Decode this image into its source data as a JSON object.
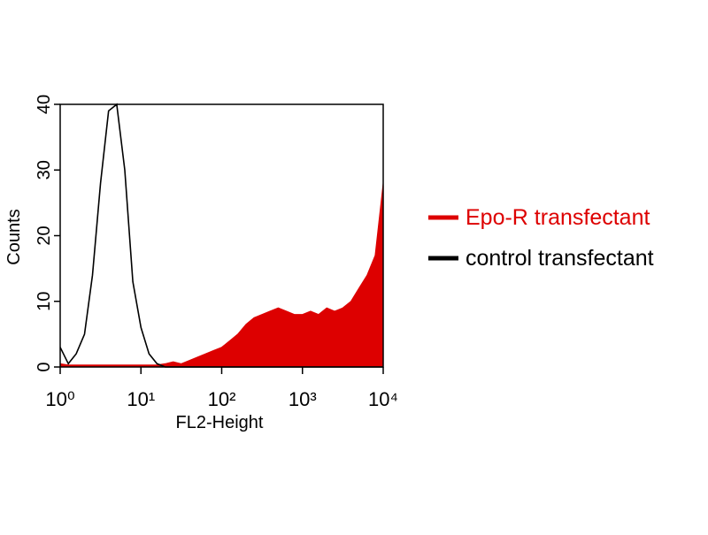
{
  "chart_data": {
    "type": "histogram-overlay",
    "x_label": "FL2-Height",
    "y_label": "Counts",
    "xscale": "log",
    "xlim": [
      1,
      10000
    ],
    "ylim": [
      0,
      40
    ],
    "xticks": [
      {
        "value": 1,
        "label": "10⁰"
      },
      {
        "value": 10,
        "label": "10¹"
      },
      {
        "value": 100,
        "label": "10²"
      },
      {
        "value": 1000,
        "label": "10³"
      },
      {
        "value": 10000,
        "label": "10⁴"
      }
    ],
    "yticks": [
      0,
      10,
      20,
      30,
      40
    ],
    "x": [
      1,
      1.26,
      1.58,
      2,
      2.51,
      3.16,
      3.98,
      5.01,
      6.31,
      7.94,
      10,
      12.6,
      15.8,
      20,
      25.1,
      31.6,
      39.8,
      50.1,
      63.1,
      79.4,
      100,
      126,
      158,
      200,
      251,
      316,
      398,
      501,
      631,
      794,
      1000,
      1260,
      1580,
      2000,
      2510,
      3160,
      3980,
      5010,
      6310,
      7940,
      10000
    ],
    "series": [
      {
        "name": "Epo-R transfectant",
        "color": "#dd0000",
        "fill": true,
        "values": [
          0.5,
          0.3,
          0.3,
          0.3,
          0.3,
          0.3,
          0.3,
          0.3,
          0.3,
          0.3,
          0.3,
          0.3,
          0.3,
          0.5,
          0.8,
          0.5,
          1,
          1.5,
          2,
          2.5,
          3,
          4,
          5,
          6.5,
          7.5,
          8,
          8.5,
          9,
          8.5,
          8,
          8,
          8.5,
          8,
          9,
          8.5,
          9,
          10,
          12,
          14,
          17,
          28
        ]
      },
      {
        "name": "control transfectant",
        "color": "#000000",
        "fill": false,
        "values": [
          3,
          0.5,
          2,
          5,
          14,
          28,
          39,
          40,
          30,
          13,
          6,
          2,
          0.5,
          0,
          0,
          0,
          0,
          0,
          0,
          0,
          0,
          0,
          0,
          0,
          0,
          0,
          0,
          0,
          0,
          0,
          0,
          0,
          0,
          0,
          0,
          0,
          0,
          0,
          0,
          0,
          0
        ]
      }
    ]
  }
}
